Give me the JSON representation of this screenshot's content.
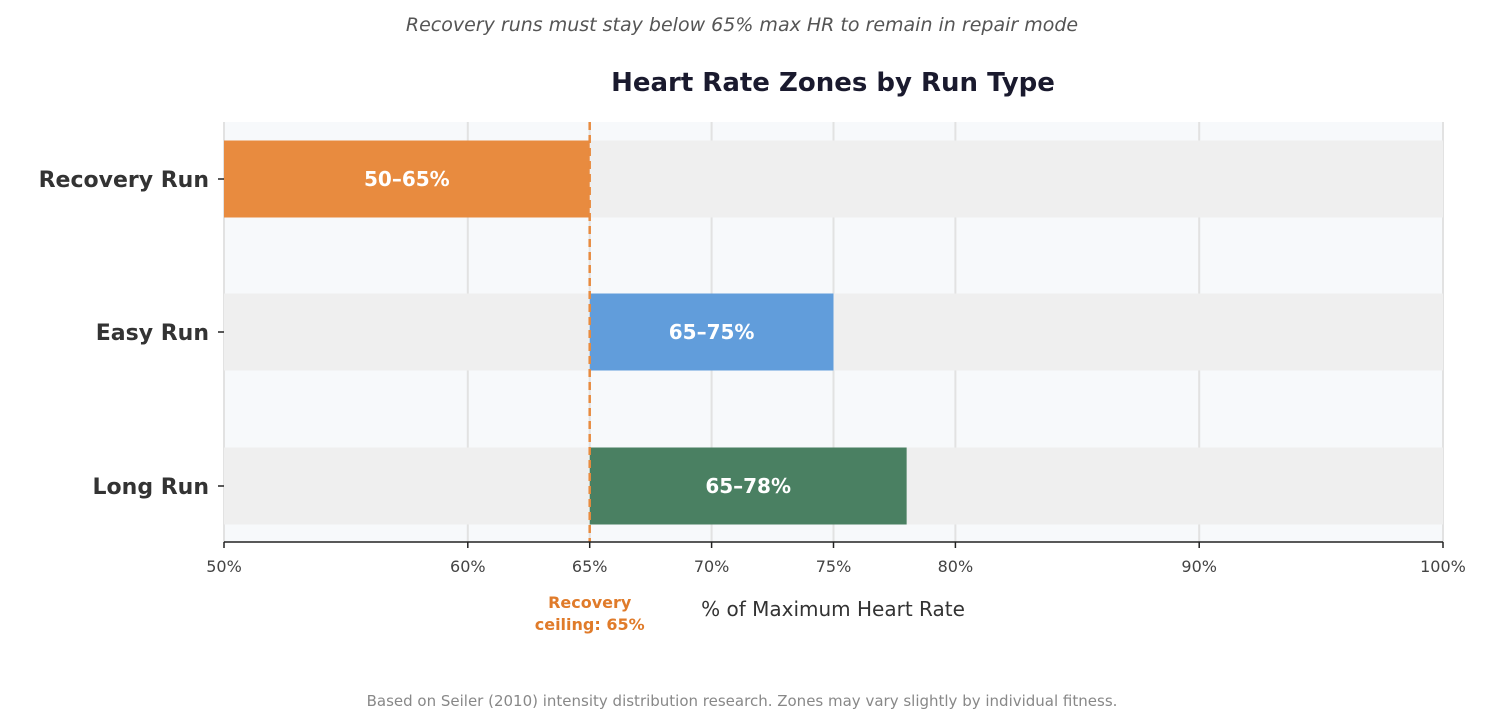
{
  "chart_data": {
    "type": "bar",
    "orientation": "horizontal",
    "subtitle": "Recovery runs must stay below 65% max HR to remain in repair mode",
    "title": "Heart Rate Zones by Run Type",
    "xlabel": "% of Maximum Heart Rate",
    "ylabel": "",
    "xlim": [
      50,
      100
    ],
    "grid": true,
    "x_ticks": [
      50,
      60,
      65,
      70,
      75,
      80,
      90,
      100
    ],
    "x_tick_labels": [
      "50%",
      "60%",
      "65%",
      "70%",
      "75%",
      "80%",
      "90%",
      "100%"
    ],
    "categories": [
      "Recovery Run",
      "Easy Run",
      "Long Run"
    ],
    "ranges": [
      {
        "category": "Recovery Run",
        "start": 50,
        "end": 65,
        "label": "50–65%",
        "color": "#e88b3f"
      },
      {
        "category": "Easy Run",
        "start": 65,
        "end": 75,
        "label": "65–75%",
        "color": "#619ddb"
      },
      {
        "category": "Long Run",
        "start": 65,
        "end": 78,
        "label": "65–78%",
        "color": "#4a8062"
      }
    ],
    "reference_line": {
      "x": 65,
      "label_line1": "Recovery",
      "label_line2": "ceiling: 65%",
      "color": "#e88b3f"
    },
    "footnote": "Based on Seiler (2010) intensity distribution research. Zones may vary slightly by individual fitness.",
    "colors": {
      "plot_background": "#f7f9fb",
      "track": "#efefef",
      "grid": "#e2e2e2",
      "axis": "#222222",
      "reference_text": "#e07b2a"
    }
  }
}
